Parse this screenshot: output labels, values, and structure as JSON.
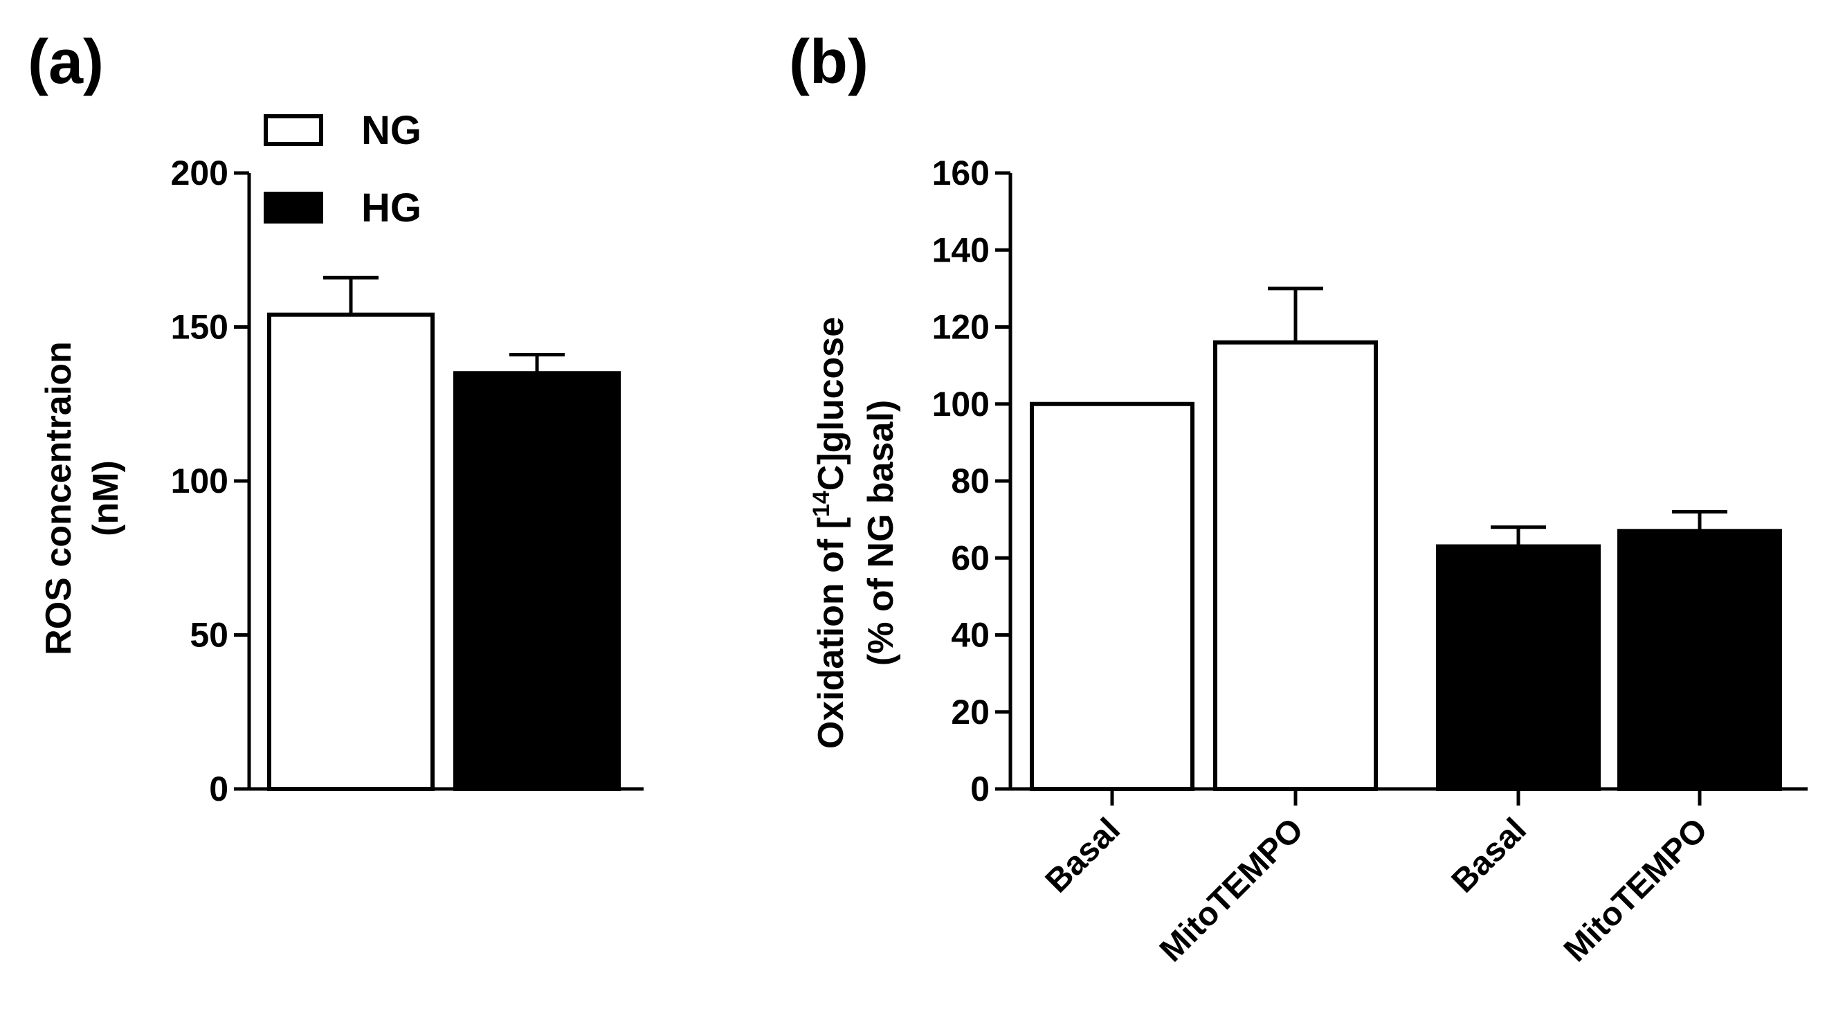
{
  "chart_data": [
    {
      "panel": "(a)",
      "type": "bar",
      "ylabel_line1": "ROS concentraion",
      "ylabel_line2": "(nM)",
      "ylim": [
        0,
        200
      ],
      "yticks": [
        0,
        50,
        100,
        150,
        200
      ],
      "series": [
        {
          "name": "NG",
          "value": 154,
          "error": 12,
          "fill": "#ffffff"
        },
        {
          "name": "HG",
          "value": 135,
          "error": 6,
          "fill": "#000000"
        }
      ],
      "legend": [
        {
          "label": "NG",
          "fill": "#ffffff"
        },
        {
          "label": "HG",
          "fill": "#000000"
        }
      ]
    },
    {
      "panel": "(b)",
      "type": "bar",
      "ylabel_line1_pre": "Oxidation of [",
      "ylabel_sup": "14",
      "ylabel_line1_post": "C]glucose",
      "ylabel_line2": "(% of NG basal)",
      "ylim": [
        0,
        160
      ],
      "yticks": [
        0,
        20,
        40,
        60,
        80,
        100,
        120,
        140,
        160
      ],
      "bars": [
        {
          "category": "Basal",
          "group": "NG",
          "value": 100,
          "error": 0,
          "fill": "#ffffff"
        },
        {
          "category": "MitoTEMPO",
          "group": "NG",
          "value": 116,
          "error": 14,
          "fill": "#ffffff"
        },
        {
          "category": "Basal",
          "group": "HG",
          "value": 63,
          "error": 5,
          "fill": "#000000"
        },
        {
          "category": "MitoTEMPO",
          "group": "HG",
          "value": 67,
          "error": 5,
          "fill": "#000000"
        }
      ]
    }
  ]
}
